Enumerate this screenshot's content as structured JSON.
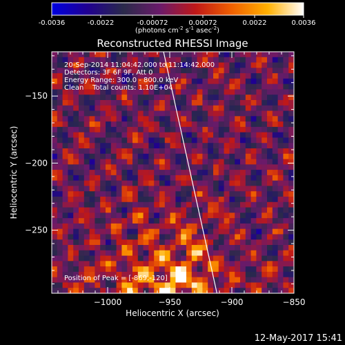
{
  "colorbar": {
    "min": -0.0036,
    "max": 0.0036,
    "tick_labels": [
      "-0.0036",
      "-0.0022",
      "-0.00072",
      "0.00072",
      "0.0022",
      "0.0036"
    ],
    "units_line1": "(photons cm",
    "units_sup1": "-2",
    "units_mid1": " s",
    "units_sup2": "-1",
    "units_mid2": " asec",
    "units_sup3": "-2",
    "units_end": ")",
    "stops": [
      "#0000e0",
      "#200090",
      "#2a2a4a",
      "#6a1a6a",
      "#c01818",
      "#f06000",
      "#ffb000",
      "#ffffff"
    ]
  },
  "chart_data": {
    "type": "heatmap",
    "title": "Reconstructed RHESSI Image",
    "xlabel": "Heliocentric X (arcsec)",
    "ylabel": "Heliocentric Y (arcsec)",
    "xlim": [
      -1045,
      -850
    ],
    "ylim": [
      -297,
      -117
    ],
    "x_ticks": [
      -1000,
      -950,
      -900,
      -850
    ],
    "x_tick_labels": [
      "−1000",
      "−950",
      "−900",
      "−850"
    ],
    "y_ticks": [
      -250,
      -200,
      -150
    ],
    "y_tick_labels": [
      "−250",
      "−200",
      "−150"
    ],
    "limb_line": [
      [
        -955,
        -117
      ],
      [
        -912,
        -297
      ]
    ],
    "peak": [
      -869,
      -120
    ],
    "annotations": [
      "20-Sep-2014 11:04:42.000 to 11:14:42.000",
      "Detectors: 3F 6F 9F, Att 0",
      "Energy Range: 300.0 - 800.0 keV",
      "Clean    Total counts: 1.10E+04"
    ],
    "peak_label": "Position of Peak = [-869,-120]"
  },
  "footer": {
    "timestamp": "12-May-2017 15:41"
  }
}
